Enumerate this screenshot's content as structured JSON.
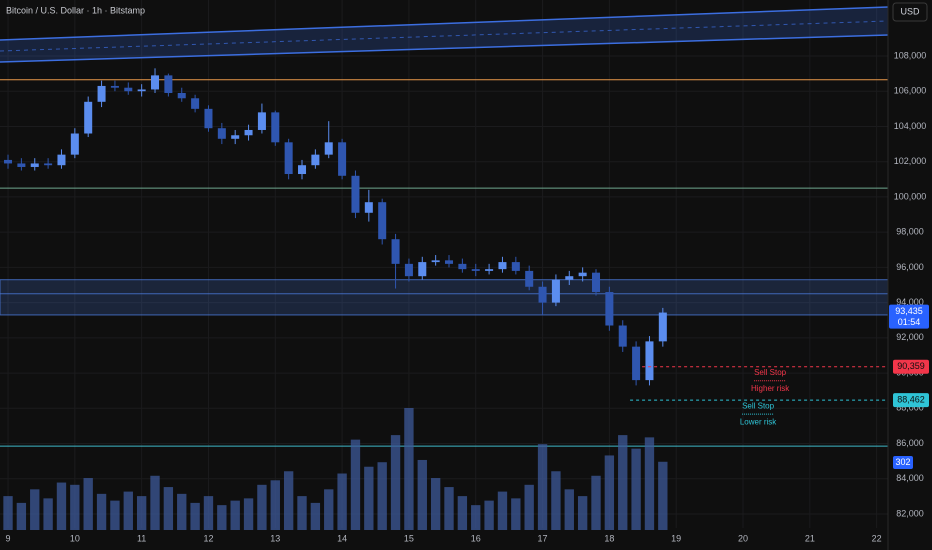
{
  "chart_data": {
    "type": "candlestick",
    "title": "Bitcoin / U.S. Dollar · 1h · Bitstamp",
    "currency": "USD",
    "xlim": [
      8.88,
      22.17
    ],
    "xticks": [
      9,
      10,
      11,
      12,
      13,
      14,
      15,
      16,
      17,
      18,
      19,
      20,
      21,
      22
    ],
    "ylim": [
      79956,
      111179
    ],
    "yticks": [
      {
        "value": 82000,
        "label": "82,000"
      },
      {
        "value": 84000,
        "label": "84,000"
      },
      {
        "value": 86000,
        "label": "86,000"
      },
      {
        "value": 88000,
        "label": "88,000"
      },
      {
        "value": 90000,
        "label": "90,000"
      },
      {
        "value": 92000,
        "label": "92,000"
      },
      {
        "value": 94000,
        "label": "94,000"
      },
      {
        "value": 96000,
        "label": "96,000"
      },
      {
        "value": 98000,
        "label": "98,000"
      },
      {
        "value": 100000,
        "label": "100,000"
      },
      {
        "value": 102000,
        "label": "102,000"
      },
      {
        "value": 104000,
        "label": "104,000"
      },
      {
        "value": 106000,
        "label": "106,000"
      },
      {
        "value": 108000,
        "label": "108,000"
      }
    ],
    "grid": true,
    "up_color": "#5b8def",
    "down_color": "#2f56b0",
    "volume_color": "#3d5a9a",
    "x": [
      9.0,
      9.2,
      9.4,
      9.6,
      9.8,
      10.0,
      10.2,
      10.4,
      10.6,
      10.8,
      11.0,
      11.2,
      11.4,
      11.6,
      11.8,
      12.0,
      12.2,
      12.4,
      12.6,
      12.8,
      13.0,
      13.2,
      13.4,
      13.6,
      13.8,
      14.0,
      14.2,
      14.4,
      14.6,
      14.8,
      15.0,
      15.2,
      15.4,
      15.6,
      15.8,
      16.0,
      16.2,
      16.4,
      16.6,
      16.8,
      17.0,
      17.2,
      17.4,
      17.6,
      17.8,
      18.0,
      18.2,
      18.4,
      18.6,
      18.8
    ],
    "open": [
      102100,
      101900,
      101700,
      101900,
      101800,
      102400,
      103600,
      105400,
      106300,
      106200,
      106000,
      106100,
      106900,
      105900,
      105600,
      105000,
      103900,
      103300,
      103500,
      103800,
      104800,
      103100,
      101300,
      101800,
      102400,
      103100,
      101200,
      99100,
      99700,
      97600,
      96200,
      95500,
      96300,
      96400,
      96200,
      95900,
      95800,
      95900,
      96300,
      95800,
      94900,
      94000,
      95300,
      95500,
      95700,
      94600,
      92700,
      91500,
      89600,
      91800
    ],
    "high": [
      102400,
      102200,
      102200,
      102200,
      102700,
      103900,
      105700,
      106600,
      106600,
      106500,
      106400,
      107300,
      107000,
      106200,
      105800,
      105200,
      104200,
      103800,
      104100,
      105300,
      104900,
      103300,
      102100,
      102700,
      104300,
      103300,
      101500,
      100400,
      99900,
      97900,
      96500,
      96600,
      96700,
      96700,
      96500,
      96200,
      96200,
      96600,
      96600,
      96100,
      95200,
      95600,
      95800,
      96000,
      95900,
      94900,
      93000,
      91800,
      92100,
      93700
    ],
    "low": [
      101600,
      101500,
      101500,
      101600,
      101600,
      102200,
      103400,
      105100,
      106000,
      105800,
      105700,
      105900,
      105700,
      105400,
      104800,
      103700,
      103000,
      103000,
      103200,
      103600,
      102900,
      101000,
      101000,
      101600,
      102200,
      101000,
      98800,
      98600,
      97300,
      94800,
      95200,
      95300,
      96100,
      96000,
      95700,
      95500,
      95600,
      95700,
      95600,
      94700,
      93300,
      93800,
      95000,
      95200,
      94400,
      92400,
      91200,
      89300,
      89300,
      91500
    ],
    "close": [
      101900,
      101700,
      101900,
      101800,
      102400,
      103600,
      105400,
      106300,
      106200,
      106000,
      106100,
      106900,
      105900,
      105600,
      105000,
      103900,
      103300,
      103500,
      103800,
      104800,
      103100,
      101300,
      101800,
      102400,
      103100,
      101200,
      99100,
      99700,
      97600,
      96200,
      95500,
      96300,
      96400,
      96200,
      95900,
      95800,
      95900,
      96300,
      95800,
      94900,
      94000,
      95300,
      95500,
      95700,
      94600,
      92700,
      91500,
      89600,
      91800,
      93435
    ],
    "volume": [
      150,
      120,
      180,
      140,
      210,
      200,
      230,
      160,
      130,
      170,
      150,
      240,
      190,
      160,
      120,
      150,
      110,
      130,
      140,
      200,
      220,
      260,
      150,
      120,
      180,
      250,
      400,
      280,
      300,
      420,
      540,
      310,
      230,
      190,
      150,
      110,
      130,
      170,
      140,
      200,
      380,
      260,
      180,
      150,
      240,
      330,
      420,
      360,
      410,
      302
    ],
    "channel": {
      "upper": [
        108908,
        110782
      ],
      "lower": [
        107659,
        109192
      ],
      "color": "#3c6ee0"
    },
    "levels": [
      {
        "price": 106650,
        "color": "#e8984a"
      },
      {
        "price": 100500,
        "color": "#6fa88f"
      },
      {
        "price": 85850,
        "color": "#3fb8c8"
      }
    ],
    "zone": {
      "top": 95300,
      "bottom": 93300,
      "mid": 94500,
      "color": "#4a78d8"
    },
    "last_price": {
      "value": 93435,
      "label": "93,435",
      "countdown": "01:54"
    },
    "orders": [
      {
        "value": 90359,
        "label": "90,359",
        "start": 18.49,
        "color": "#f2364a",
        "texts": [
          "Sell Stop",
          "Higher risk"
        ]
      },
      {
        "value": 88462,
        "label": "88,462",
        "start": 18.31,
        "color": "#2fc4d6",
        "texts": [
          "Sell Stop",
          "Lower risk"
        ]
      }
    ]
  }
}
